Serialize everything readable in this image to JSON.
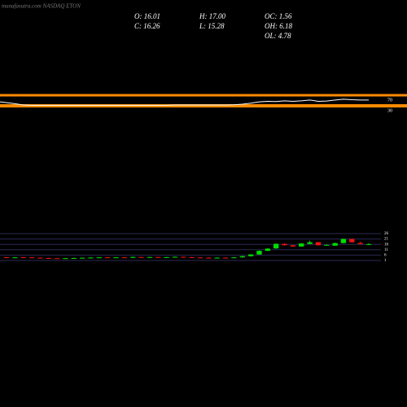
{
  "chart_data": [
    {
      "type": "line",
      "ylim": [
        0,
        100
      ],
      "yticks": [
        30,
        70
      ],
      "band_color": "#ff8c00",
      "color": "#ffffff",
      "values": [
        45,
        38,
        33,
        32,
        32,
        32,
        32,
        32,
        32,
        32,
        32,
        32,
        32,
        32,
        32,
        32,
        32,
        32,
        32,
        32,
        33,
        33,
        33,
        33,
        33,
        33,
        33,
        34,
        36,
        40,
        45,
        47,
        46,
        49,
        47,
        49,
        52,
        47,
        48,
        52,
        55,
        53,
        52,
        52
      ]
    },
    {
      "type": "candlestick",
      "title": "munafasutra.com NASDAQ ETON",
      "annotations": [
        "O: 16.01",
        "H: 17.00",
        "OC: 1.56",
        "C: 16.26",
        "L: 15.28",
        "OH: 6.18",
        "OL: 4.78"
      ],
      "ylim": [
        1,
        26
      ],
      "yticks": [
        26,
        21,
        16,
        11,
        6,
        1
      ],
      "grid": true,
      "grid_color": "#2a2a55",
      "up_color": "#00dd00",
      "down_color": "#ee1111",
      "open": [
        4.0,
        3.7,
        4.0,
        3.9,
        3.6,
        3.3,
        3.1,
        3.0,
        3.1,
        3.3,
        3.5,
        3.7,
        3.9,
        3.7,
        3.9,
        3.5,
        4.2,
        4.0,
        4.2,
        3.8,
        4.1,
        4.4,
        4.1,
        3.8,
        3.6,
        3.5,
        3.6,
        3.4,
        3.9,
        5.0,
        6.6,
        10.0,
        12.2,
        16.5,
        15.2,
        14.0,
        16.4,
        18.0,
        15.4,
        14.8,
        17.2,
        21.0,
        17.3,
        16.01
      ],
      "close": [
        3.6,
        3.9,
        3.7,
        3.6,
        3.3,
        3.1,
        3.0,
        3.1,
        3.3,
        3.5,
        3.7,
        3.9,
        3.7,
        3.9,
        3.7,
        4.3,
        4.0,
        4.2,
        3.8,
        4.1,
        4.4,
        4.1,
        3.8,
        3.6,
        3.5,
        3.6,
        3.4,
        3.9,
        5.0,
        6.6,
        10.0,
        12.0,
        16.5,
        15.2,
        14.0,
        16.8,
        18.0,
        15.2,
        15.5,
        17.2,
        21.0,
        18.0,
        16.2,
        16.26
      ],
      "high": [
        4.3,
        4.2,
        4.3,
        4.2,
        3.9,
        3.6,
        3.4,
        3.4,
        3.6,
        3.8,
        4.0,
        4.2,
        4.2,
        4.2,
        4.2,
        4.6,
        4.5,
        4.5,
        4.5,
        4.4,
        4.7,
        4.7,
        4.4,
        4.1,
        3.9,
        3.9,
        3.9,
        4.2,
        5.3,
        6.9,
        10.3,
        12.5,
        17.0,
        16.8,
        15.5,
        17.2,
        19.5,
        18.3,
        15.9,
        17.6,
        21.4,
        21.3,
        18.6,
        17.0
      ],
      "low": [
        3.3,
        3.4,
        3.4,
        3.3,
        3.0,
        2.8,
        2.7,
        2.7,
        2.8,
        3.0,
        3.2,
        3.4,
        3.4,
        3.4,
        3.4,
        3.2,
        3.7,
        3.7,
        3.5,
        3.5,
        3.8,
        3.8,
        3.5,
        3.3,
        3.2,
        3.2,
        3.1,
        3.1,
        3.6,
        4.7,
        6.3,
        9.7,
        11.9,
        14.9,
        13.7,
        13.7,
        16.1,
        14.9,
        15.0,
        14.5,
        16.9,
        17.7,
        15.9,
        15.28
      ]
    }
  ]
}
